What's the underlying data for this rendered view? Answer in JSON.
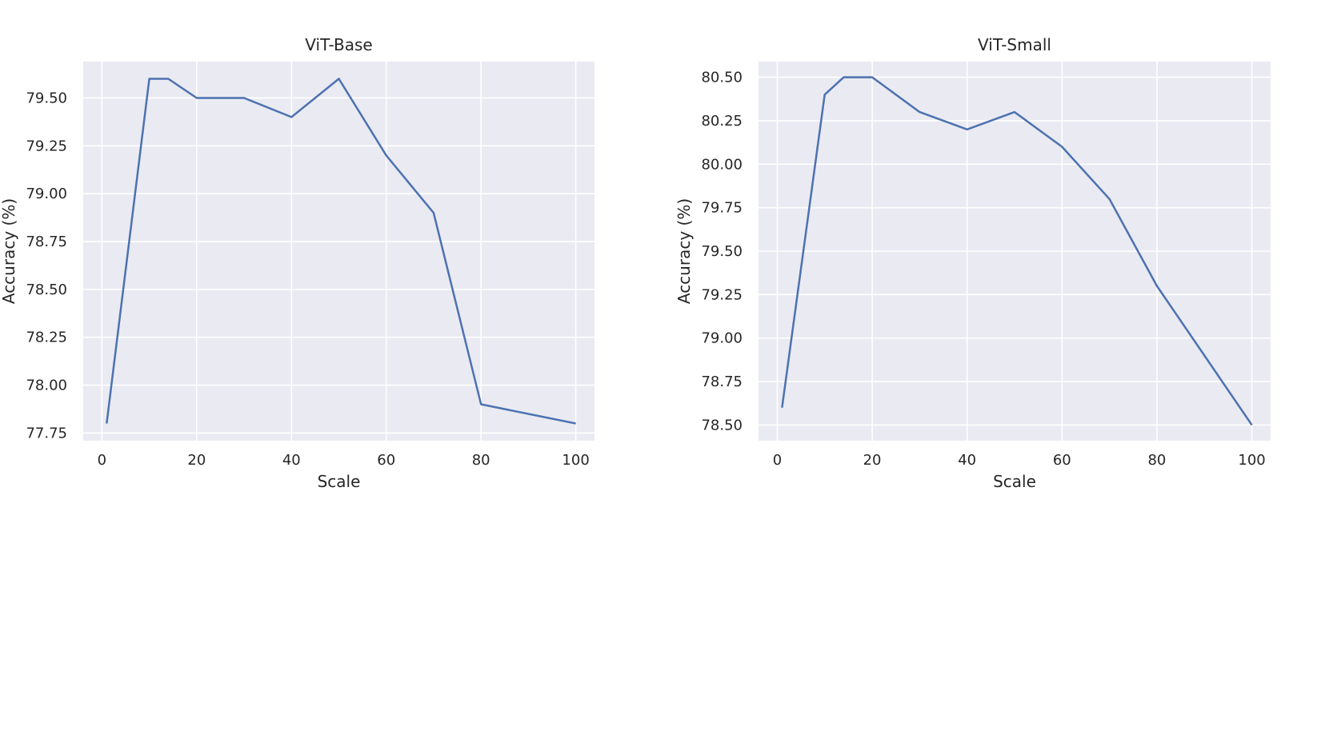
{
  "chart_data": [
    {
      "type": "line",
      "title": "ViT-Base",
      "xlabel": "Scale",
      "ylabel": "Accuracy (%)",
      "xlim": [
        -3.95,
        103.95
      ],
      "ylim": [
        77.71,
        79.69
      ],
      "xticks": [
        0,
        20,
        40,
        60,
        80,
        100
      ],
      "xtick_labels": [
        "0",
        "20",
        "40",
        "60",
        "80",
        "100"
      ],
      "yticks": [
        77.75,
        78.0,
        78.25,
        78.5,
        78.75,
        79.0,
        79.25,
        79.5
      ],
      "ytick_labels": [
        "77.75",
        "78.00",
        "78.25",
        "78.50",
        "78.75",
        "79.00",
        "79.25",
        "79.50"
      ],
      "grid": true,
      "series": [
        {
          "color": "#4c72b0",
          "x": [
            1,
            10,
            14,
            20,
            30,
            40,
            50,
            60,
            70,
            80,
            100
          ],
          "y": [
            77.8,
            79.6,
            79.6,
            79.5,
            79.5,
            79.4,
            79.6,
            79.2,
            78.9,
            77.9,
            77.8
          ]
        }
      ]
    },
    {
      "type": "line",
      "title": "ViT-Small",
      "xlabel": "Scale",
      "ylabel": "Accuracy (%)",
      "xlim": [
        -3.95,
        103.95
      ],
      "ylim": [
        78.41,
        80.59
      ],
      "xticks": [
        0,
        20,
        40,
        60,
        80,
        100
      ],
      "xtick_labels": [
        "0",
        "20",
        "40",
        "60",
        "80",
        "100"
      ],
      "yticks": [
        78.5,
        78.75,
        79.0,
        79.25,
        79.5,
        79.75,
        80.0,
        80.25,
        80.5
      ],
      "ytick_labels": [
        "78.50",
        "78.75",
        "79.00",
        "79.25",
        "79.50",
        "79.75",
        "80.00",
        "80.25",
        "80.50"
      ],
      "grid": true,
      "series": [
        {
          "color": "#4c72b0",
          "x": [
            1,
            10,
            14,
            20,
            30,
            40,
            50,
            60,
            70,
            80,
            100
          ],
          "y": [
            78.6,
            80.4,
            80.5,
            80.5,
            80.3,
            80.2,
            80.3,
            80.1,
            79.8,
            79.3,
            78.5
          ]
        }
      ]
    }
  ],
  "colors": {
    "panel_background": "#eaeaf2",
    "grid": "#ffffff",
    "line": "#4c72b0"
  }
}
